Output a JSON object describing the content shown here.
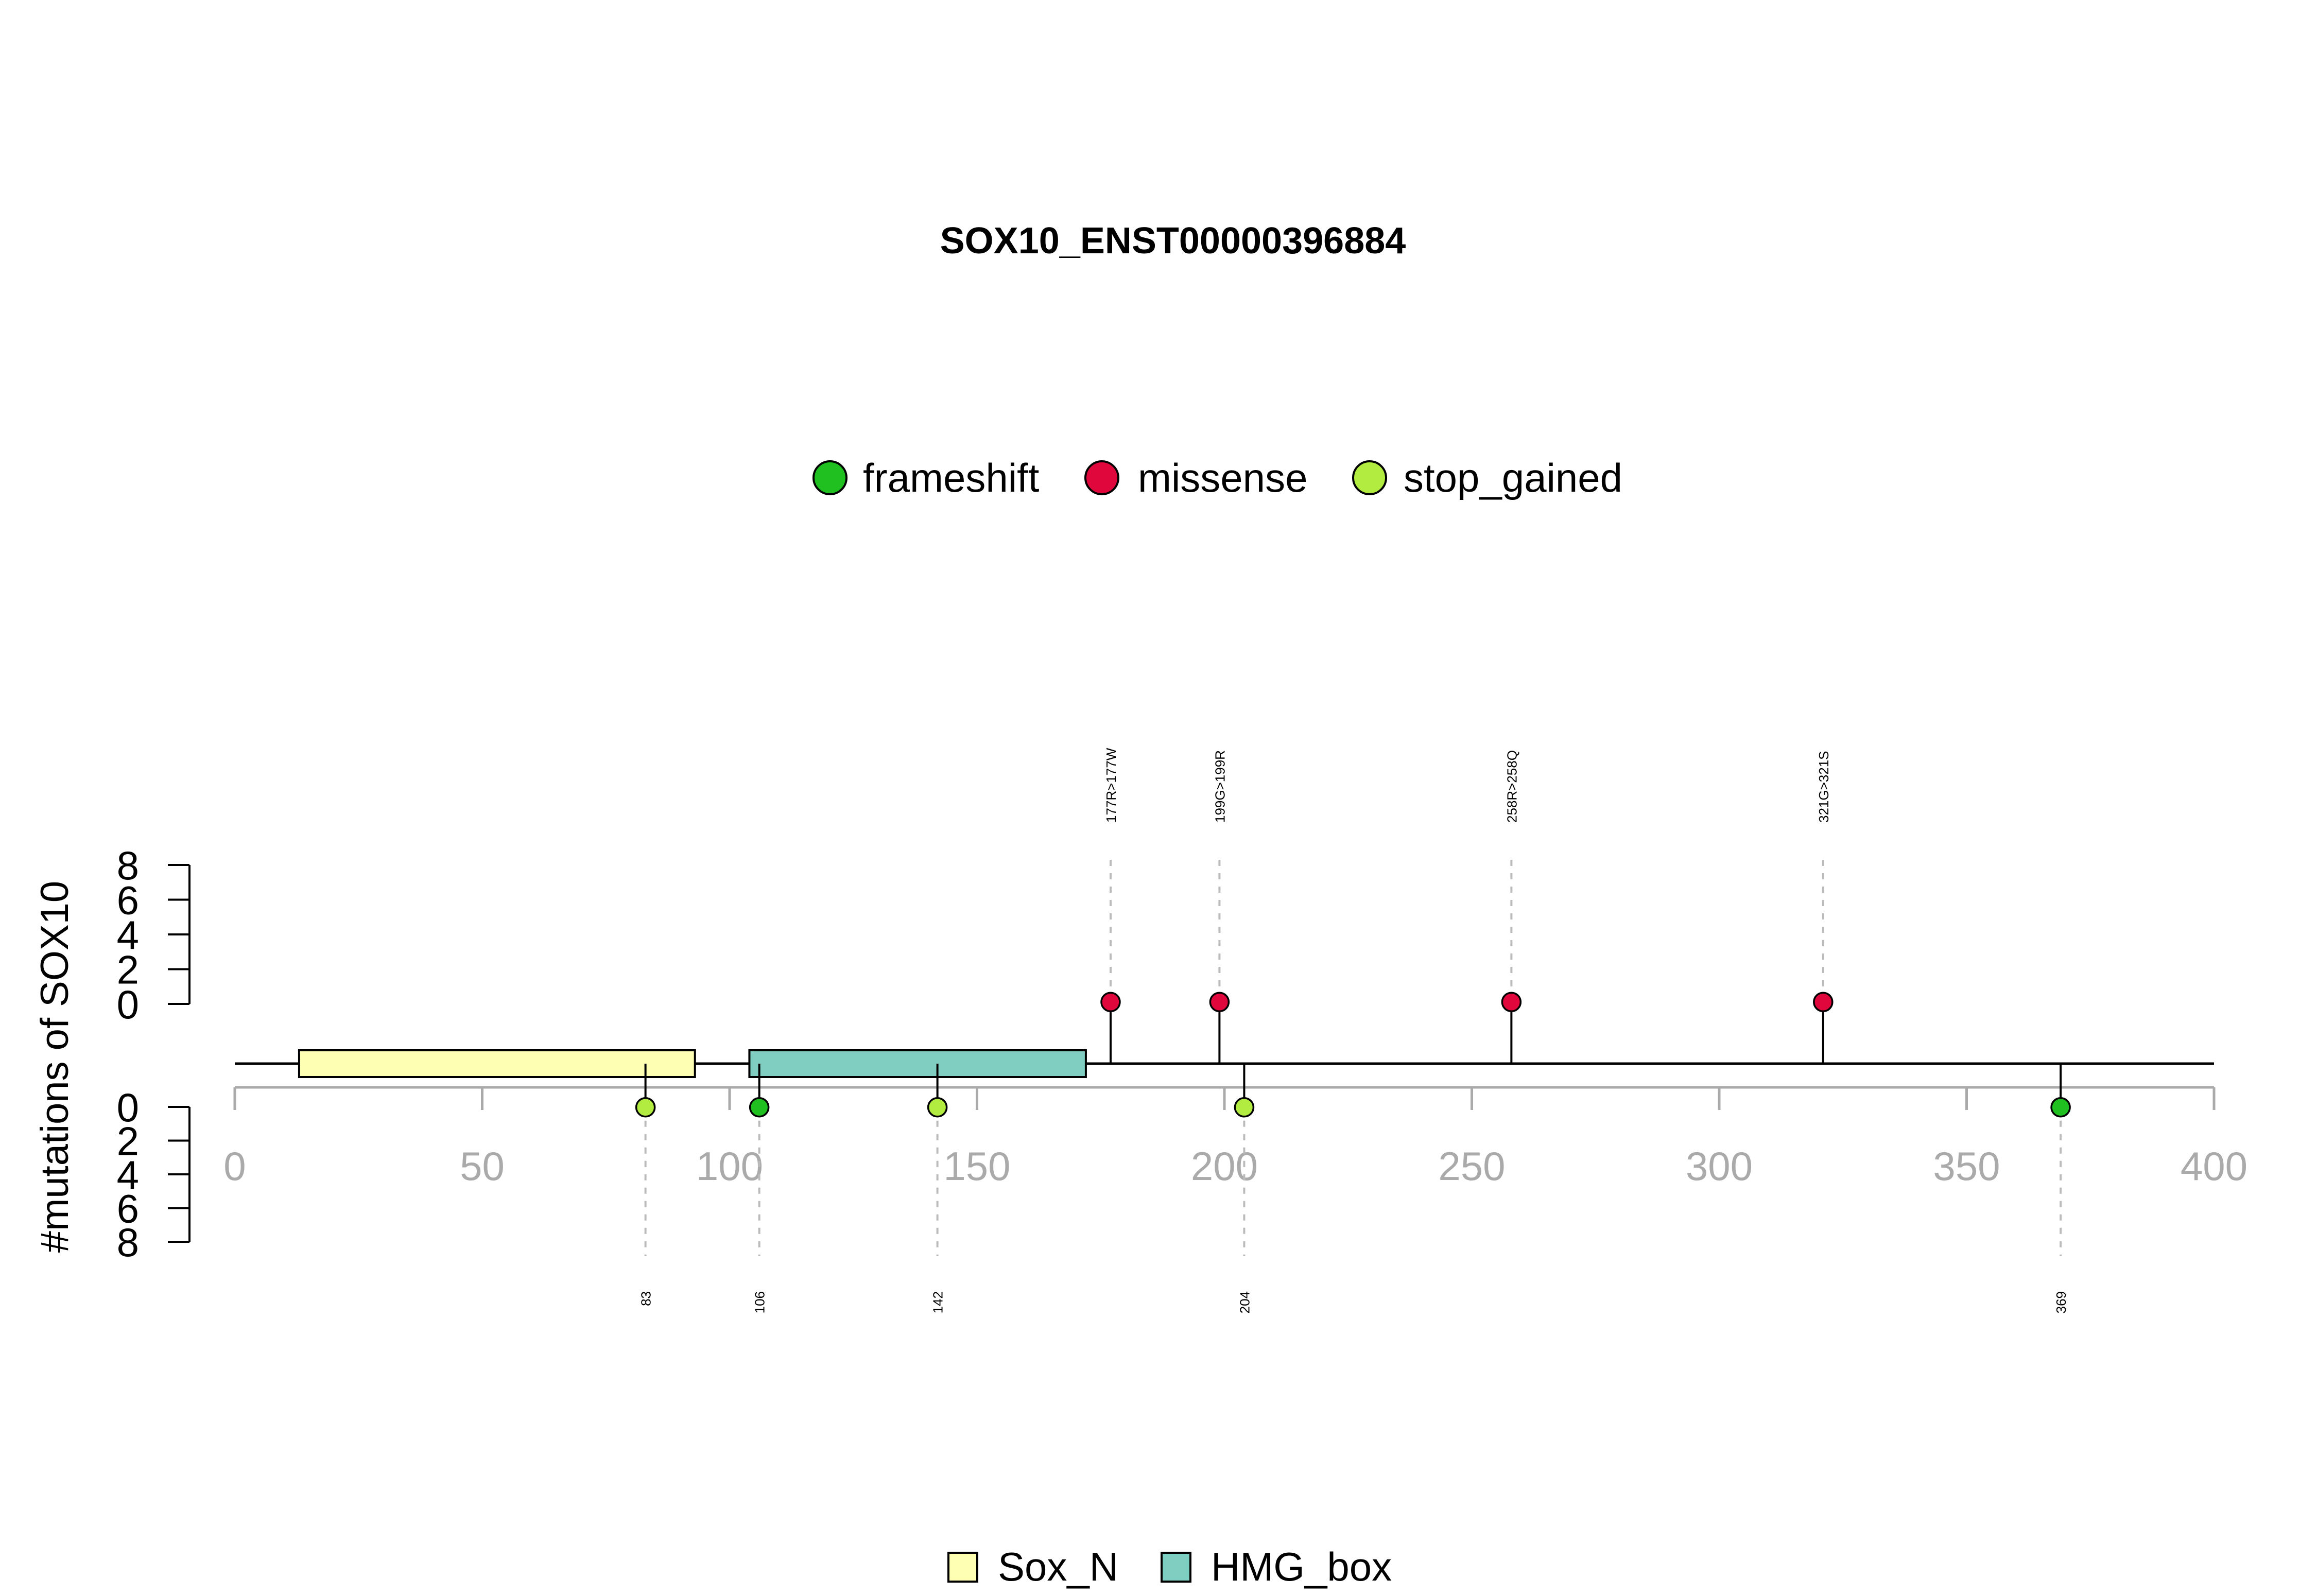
{
  "chart_data": {
    "type": "lollipop",
    "title": "SOX10_ENST00000396884",
    "ylabel": "#mutations of SOX10",
    "xlim": [
      0,
      400
    ],
    "x_ticks": [
      0,
      50,
      100,
      150,
      200,
      250,
      300,
      350,
      400
    ],
    "y_ticks": [
      0,
      2,
      4,
      6,
      8
    ],
    "ylim": [
      0,
      8
    ],
    "mutation_types": [
      {
        "name": "frameshift",
        "color": "#1fc01f"
      },
      {
        "name": "missense",
        "color": "#e0073d"
      },
      {
        "name": "stop_gained",
        "color": "#b2ec40"
      }
    ],
    "domains": [
      {
        "name": "Sox_N",
        "start": 13,
        "end": 93,
        "color": "#ffffb3"
      },
      {
        "name": "HMG_box",
        "start": 104,
        "end": 172,
        "color": "#80cdc1"
      }
    ],
    "mutations_above": [
      {
        "position": 177,
        "count": 1,
        "type": "missense",
        "label": "177R>177W"
      },
      {
        "position": 199,
        "count": 1,
        "type": "missense",
        "label": "199G>199R"
      },
      {
        "position": 258,
        "count": 1,
        "type": "missense",
        "label": "258R>258Q"
      },
      {
        "position": 321,
        "count": 1,
        "type": "missense",
        "label": "321G>321S"
      }
    ],
    "mutations_below": [
      {
        "position": 83,
        "count": 1,
        "type": "stop_gained",
        "label": "83"
      },
      {
        "position": 106,
        "count": 1,
        "type": "frameshift",
        "label": "106"
      },
      {
        "position": 142,
        "count": 1,
        "type": "stop_gained",
        "label": "142"
      },
      {
        "position": 204,
        "count": 1,
        "type": "stop_gained",
        "label": "204"
      },
      {
        "position": 369,
        "count": 1,
        "type": "frameshift",
        "label": "369"
      }
    ]
  }
}
